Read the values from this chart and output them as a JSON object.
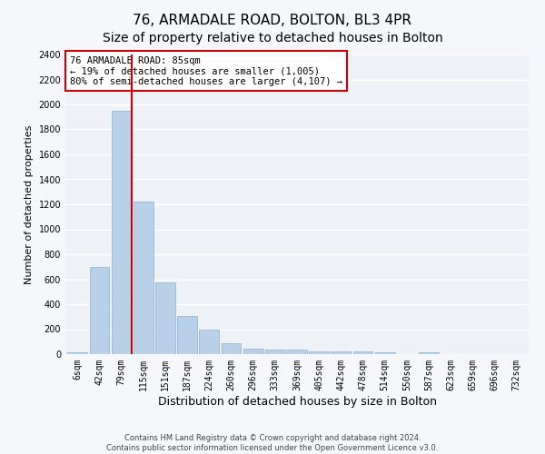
{
  "title": "76, ARMADALE ROAD, BOLTON, BL3 4PR",
  "subtitle": "Size of property relative to detached houses in Bolton",
  "xlabel": "Distribution of detached houses by size in Bolton",
  "ylabel": "Number of detached properties",
  "categories": [
    "6sqm",
    "42sqm",
    "79sqm",
    "115sqm",
    "151sqm",
    "187sqm",
    "224sqm",
    "260sqm",
    "296sqm",
    "333sqm",
    "369sqm",
    "405sqm",
    "442sqm",
    "478sqm",
    "514sqm",
    "550sqm",
    "587sqm",
    "623sqm",
    "659sqm",
    "696sqm",
    "732sqm"
  ],
  "values": [
    18,
    700,
    1950,
    1220,
    575,
    305,
    200,
    85,
    47,
    38,
    35,
    22,
    20,
    22,
    12,
    0,
    18,
    0,
    0,
    0,
    0
  ],
  "bar_color": "#b8d0e8",
  "bar_edge_color": "#8ab0d0",
  "plot_bg_color": "#eef2f7",
  "fig_bg_color": "#f5f7fa",
  "grid_color": "#ffffff",
  "vline_color": "#cc0000",
  "vline_x_index": 2,
  "annotation_text": "76 ARMADALE ROAD: 85sqm\n← 19% of detached houses are smaller (1,005)\n80% of semi-detached houses are larger (4,107) →",
  "annotation_box_edgecolor": "#cc0000",
  "ylim": [
    0,
    2400
  ],
  "yticks": [
    0,
    200,
    400,
    600,
    800,
    1000,
    1200,
    1400,
    1600,
    1800,
    2000,
    2200,
    2400
  ],
  "footer_line1": "Contains HM Land Registry data © Crown copyright and database right 2024.",
  "footer_line2": "Contains public sector information licensed under the Open Government Licence v3.0.",
  "title_fontsize": 11,
  "ylabel_fontsize": 8,
  "xlabel_fontsize": 9,
  "tick_fontsize": 7,
  "annotation_fontsize": 7.5,
  "footer_fontsize": 6
}
